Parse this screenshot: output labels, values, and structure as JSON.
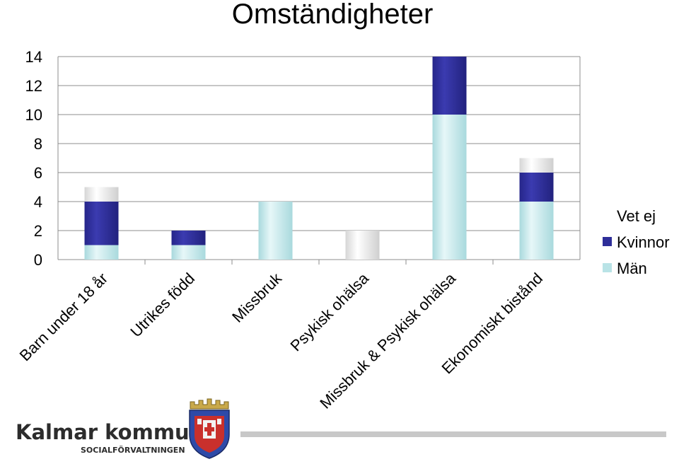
{
  "chart_data": {
    "type": "bar",
    "stacked": true,
    "title": "Omständigheter",
    "categories": [
      "Barn under 18 år",
      "Utrikes född",
      "Missbruk",
      "Psykisk ohälsa",
      "Missbruk & Psykisk ohälsa",
      "Ekonomiskt bistånd"
    ],
    "series": [
      {
        "name": "Män",
        "values": [
          1,
          1,
          4,
          0,
          10,
          4
        ],
        "color": "#b9e3e6"
      },
      {
        "name": "Kvinnor",
        "values": [
          3,
          1,
          0,
          0,
          4,
          2
        ],
        "color": "#2e2e99"
      },
      {
        "name": "Vet ej",
        "values": [
          1,
          0,
          0,
          2,
          0,
          1
        ],
        "color": "#f2f2f2"
      }
    ],
    "legend_order": [
      "Vet ej",
      "Kvinnor",
      "Män"
    ],
    "ylim": [
      0,
      14
    ],
    "yticks": [
      0,
      2,
      4,
      6,
      8,
      10,
      12,
      14
    ],
    "grid": true,
    "legend_position": "right"
  },
  "footer": {
    "logo_text": "Kalmar kommun",
    "logo_subtext": "SOCIALFÖRVALTNINGEN",
    "crest_icon": "kalmar-coat-of-arms-icon"
  }
}
